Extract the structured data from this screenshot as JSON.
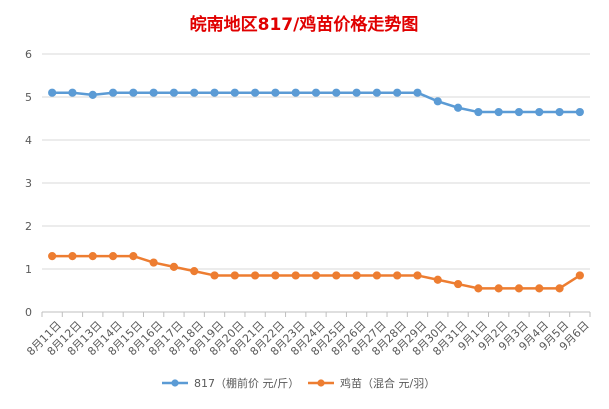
{
  "chart_data": {
    "type": "line",
    "title": "皖南地区817/鸡苗价格走势图",
    "xlabel": "",
    "ylabel": "",
    "ylim": [
      0,
      6
    ],
    "yticks": [
      0,
      1,
      2,
      3,
      4,
      5,
      6
    ],
    "grid": true,
    "legend_position": "bottom",
    "title_color": "#e00000",
    "categories": [
      "8月11日",
      "8月12日",
      "8月13日",
      "8月14日",
      "8月15日",
      "8月16日",
      "8月17日",
      "8月18日",
      "8月19日",
      "8月20日",
      "8月21日",
      "8月22日",
      "8月23日",
      "8月24日",
      "8月25日",
      "8月26日",
      "8月27日",
      "8月28日",
      "8月29日",
      "8月30日",
      "8月31日",
      "9月1日",
      "9月2日",
      "9月3日",
      "9月4日",
      "9月5日",
      "9月6日"
    ],
    "series": [
      {
        "name": "817（棚前价 元/斤）",
        "color": "#5b9bd5",
        "values": [
          5.1,
          5.1,
          5.05,
          5.1,
          5.1,
          5.1,
          5.1,
          5.1,
          5.1,
          5.1,
          5.1,
          5.1,
          5.1,
          5.1,
          5.1,
          5.1,
          5.1,
          5.1,
          5.1,
          4.9,
          4.75,
          4.65,
          4.65,
          4.65,
          4.65,
          4.65,
          4.65
        ]
      },
      {
        "name": "鸡苗（混合 元/羽）",
        "color": "#ed7d31",
        "values": [
          1.3,
          1.3,
          1.3,
          1.3,
          1.3,
          1.15,
          1.05,
          0.95,
          0.85,
          0.85,
          0.85,
          0.85,
          0.85,
          0.85,
          0.85,
          0.85,
          0.85,
          0.85,
          0.85,
          0.75,
          0.65,
          0.55,
          0.55,
          0.55,
          0.55,
          0.55,
          0.85
        ]
      }
    ]
  }
}
